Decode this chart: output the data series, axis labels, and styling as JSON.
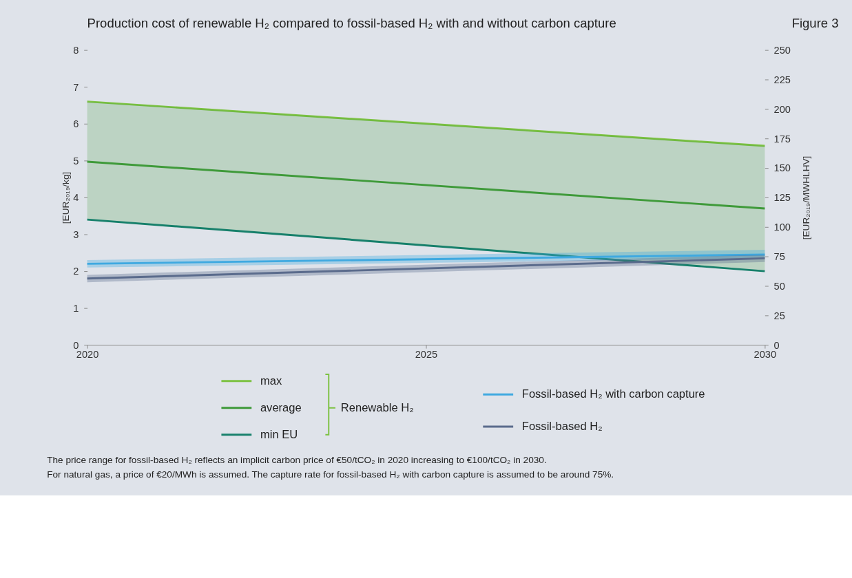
{
  "chart_data": {
    "type": "line",
    "title": "Production cost of renewable H₂ compared to fossil-based H₂ with and without carbon capture",
    "ylabel": "[EUR₂₀₁₉/kg]",
    "y2label": "[EUR₂₀₁₉/MWHLHV]",
    "legend_title": "Renewable H₂",
    "x": [
      2020,
      2030
    ],
    "xlim": [
      2020,
      2030
    ],
    "xticks": [
      2020,
      2025,
      2030
    ],
    "ylim": [
      0,
      8
    ],
    "yticks": [
      0,
      1,
      2,
      3,
      4,
      5,
      6,
      7,
      8
    ],
    "y2lim": [
      0,
      250
    ],
    "y2ticks": [
      0,
      25,
      50,
      75,
      100,
      125,
      150,
      175,
      200,
      225,
      250
    ],
    "series": [
      {
        "name": "max",
        "color": "#7dc243",
        "values": [
          6.6,
          5.4
        ]
      },
      {
        "name": "average",
        "color": "#3f9a3a",
        "values": [
          4.97,
          3.7
        ],
        "lower": [
          3.4,
          2.0
        ],
        "upper": [
          6.6,
          5.4
        ]
      },
      {
        "name": "min EU",
        "color": "#17806b",
        "values": [
          3.4,
          2.0
        ]
      },
      {
        "name": "Fossil-based H₂ with carbon capture",
        "color": "#3fa9e0",
        "values": [
          2.2,
          2.45
        ],
        "lower": [
          2.1,
          2.35
        ],
        "upper": [
          2.3,
          2.58
        ]
      },
      {
        "name": "Fossil-based H₂",
        "color": "#5a6b8c",
        "values": [
          1.8,
          2.35
        ],
        "lower": [
          1.7,
          2.25
        ],
        "upper": [
          1.9,
          2.45
        ]
      }
    ],
    "grid": false,
    "legend": "bottom",
    "annotations": [
      "Figure 3",
      "The price range for fossil-based H₂ reflects an implicit carbon price of €50/tCO₂ in 2020 increasing to €100/tCO₂ in 2030.",
      "For natural gas, a price of €20/MWh is assumed. The capture rate for fossil-based H₂ with carbon capture is assumed to be around 75%."
    ]
  }
}
